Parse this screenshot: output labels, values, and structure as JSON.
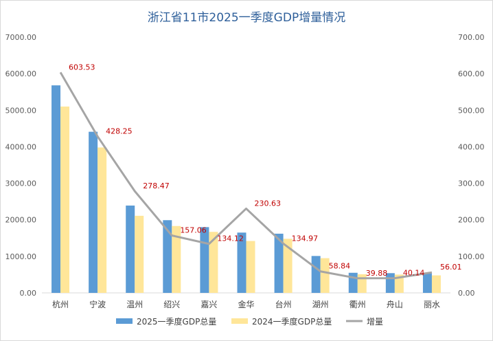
{
  "chart_data": {
    "type": "bar",
    "title": "浙江省11市2025一季度GDP增量情况",
    "categories": [
      "杭州",
      "宁波",
      "温州",
      "绍兴",
      "嘉兴",
      "金华",
      "台州",
      "湖州",
      "衢州",
      "舟山",
      "丽水"
    ],
    "series": [
      {
        "name": "2025一季度GDP总量",
        "type": "bar",
        "axis": "left",
        "color": "#5b9bd5",
        "values": [
          5680,
          4410,
          2390,
          1990,
          1800,
          1650,
          1620,
          1010,
          550,
          540,
          535
        ]
      },
      {
        "name": "2024一季度GDP总量",
        "type": "bar",
        "axis": "left",
        "color": "#ffe699",
        "values": [
          5100,
          3980,
          2110,
          1830,
          1670,
          1420,
          1480,
          950,
          510,
          500,
          479
        ]
      },
      {
        "name": "增量",
        "type": "line",
        "axis": "right",
        "color": "#a5a5a5",
        "values": [
          603.53,
          428.25,
          278.47,
          157.06,
          134.12,
          230.63,
          134.97,
          58.84,
          39.88,
          40.14,
          56.01
        ]
      }
    ],
    "data_labels": [
      "603.53",
      "428.25",
      "278.47",
      "157.06",
      "134.12",
      "230.63",
      "134.97",
      "58.84",
      "39.88",
      "40.14",
      "56.01"
    ],
    "y_left": {
      "min": 0,
      "max": 7000,
      "ticks": [
        "0.00",
        "1000.00",
        "2000.00",
        "3000.00",
        "4000.00",
        "5000.00",
        "6000.00",
        "7000.00"
      ]
    },
    "y_right": {
      "min": 0,
      "max": 700,
      "ticks": [
        "0.00",
        "100.00",
        "200.00",
        "300.00",
        "400.00",
        "500.00",
        "600.00",
        "700.00"
      ]
    },
    "grid": false,
    "legend_position": "bottom"
  }
}
